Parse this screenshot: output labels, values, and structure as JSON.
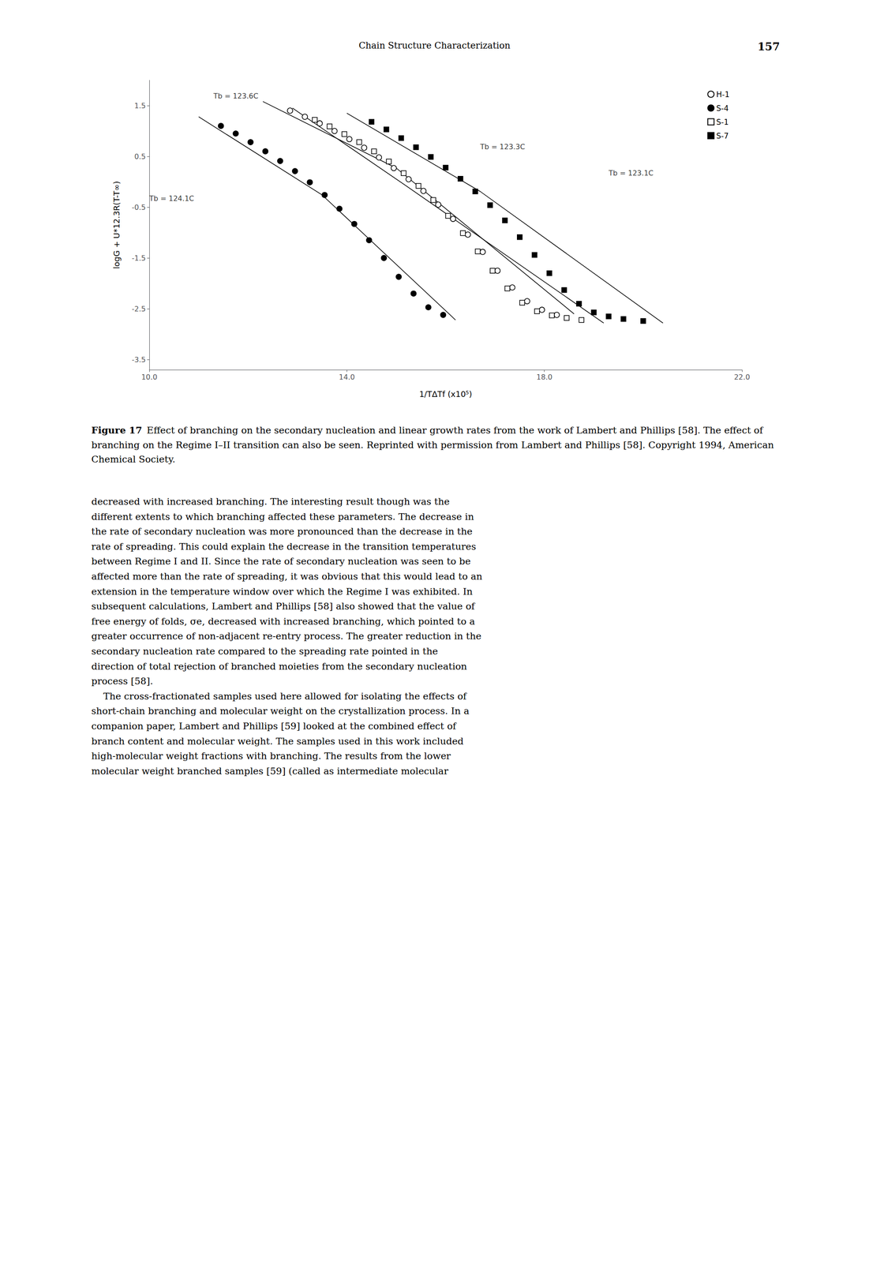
{
  "chart_data": {
    "type": "scatter",
    "x_label": "1/TΔTf (x10⁵)",
    "y_label": "logG + U*12.3R(T-T∞)",
    "xlim": [
      10.0,
      22.0
    ],
    "ylim": [
      -3.7,
      2.0
    ],
    "xticks": [
      {
        "value": 10.0,
        "label": "10.0"
      },
      {
        "value": 14.0,
        "label": "14.0"
      },
      {
        "value": 18.0,
        "label": "18.0"
      },
      {
        "value": 22.0,
        "label": "22.0"
      }
    ],
    "yticks": [
      -3.5,
      -2.5,
      -1.5,
      -0.5,
      0.5,
      1.5
    ],
    "grid": false,
    "legend": "upper right",
    "series": [
      {
        "name": "H-1",
        "marker": "open_circle",
        "color": "black",
        "x": [
          12.85,
          13.15,
          13.45,
          13.75,
          14.05,
          14.35,
          14.65,
          14.95,
          15.25,
          15.55,
          15.85,
          16.15,
          16.45,
          16.75,
          17.05,
          17.35,
          17.65,
          17.95,
          18.25
        ],
        "y": [
          1.4,
          1.28,
          1.15,
          1.0,
          0.84,
          0.67,
          0.48,
          0.27,
          0.05,
          -0.18,
          -0.45,
          -0.73,
          -1.04,
          -1.38,
          -1.75,
          -2.08,
          -2.35,
          -2.52,
          -2.62
        ],
        "line_x": [
          12.3,
          15.0,
          18.6
        ],
        "line_y": [
          1.58,
          0.27,
          -2.6
        ]
      },
      {
        "name": "S-4",
        "marker": "filled_circle",
        "color": "black",
        "x": [
          11.45,
          11.75,
          12.05,
          12.35,
          12.65,
          12.95,
          13.25,
          13.55,
          13.85,
          14.15,
          14.45,
          14.75,
          15.05,
          15.35,
          15.65,
          15.95
        ],
        "y": [
          1.1,
          0.95,
          0.78,
          0.6,
          0.41,
          0.21,
          -0.01,
          -0.26,
          -0.53,
          -0.83,
          -1.15,
          -1.5,
          -1.87,
          -2.2,
          -2.47,
          -2.62
        ],
        "line_x": [
          11.0,
          13.5,
          16.2
        ],
        "line_y": [
          1.28,
          -0.26,
          -2.72
        ]
      },
      {
        "name": "S-1",
        "marker": "open_square",
        "color": "black",
        "x": [
          13.35,
          13.65,
          13.95,
          14.25,
          14.55,
          14.85,
          15.15,
          15.45,
          15.75,
          16.05,
          16.35,
          16.65,
          16.95,
          17.25,
          17.55,
          17.85,
          18.15,
          18.45,
          18.75
        ],
        "y": [
          1.22,
          1.09,
          0.94,
          0.78,
          0.6,
          0.4,
          0.17,
          -0.08,
          -0.36,
          -0.67,
          -1.01,
          -1.37,
          -1.75,
          -2.1,
          -2.38,
          -2.55,
          -2.63,
          -2.68,
          -2.72
        ],
        "line_x": [
          12.9,
          15.2,
          19.2
        ],
        "line_y": [
          1.45,
          -0.08,
          -2.78
        ]
      },
      {
        "name": "S-7",
        "marker": "filled_square",
        "color": "black",
        "x": [
          14.5,
          14.8,
          15.1,
          15.4,
          15.7,
          16.0,
          16.3,
          16.6,
          16.9,
          17.2,
          17.5,
          17.8,
          18.1,
          18.4,
          18.7,
          19.0,
          19.3,
          19.6,
          20.0
        ],
        "y": [
          1.18,
          1.03,
          0.86,
          0.68,
          0.49,
          0.28,
          0.06,
          -0.19,
          -0.46,
          -0.76,
          -1.09,
          -1.44,
          -1.8,
          -2.13,
          -2.4,
          -2.57,
          -2.65,
          -2.7,
          -2.74
        ],
        "line_x": [
          14.0,
          16.7,
          20.4
        ],
        "line_y": [
          1.35,
          -0.19,
          -2.78
        ]
      }
    ],
    "annotations": [
      {
        "text": "Tb = 123.6C",
        "x": 11.3,
        "y": 1.62
      },
      {
        "text": "Tb = 124.1C",
        "x": 10.0,
        "y": -0.4
      },
      {
        "text": "Tb = 123.3C",
        "x": 16.7,
        "y": 0.62
      },
      {
        "text": "Tb = 123.1C",
        "x": 19.3,
        "y": 0.1
      }
    ]
  },
  "header": "Chain Structure Characterization",
  "page_number": "157",
  "caption_label": "Figure 17",
  "caption": "Effect of branching on the secondary nucleation and linear growth rates from the work of Lambert and Phillips [58]. The effect of branching on the Regime I–II transition can also be seen. Reprinted with permission from Lambert and Phillips [58]. Copyright 1994, American Chemical Society.",
  "body_text": [
    "decreased with increased branching. The interesting result though was the",
    "different extents to which branching affected these parameters. The decrease in",
    "the rate of secondary nucleation was more pronounced than the decrease in the",
    "rate of spreading. This could explain the decrease in the transition temperatures",
    "between Regime I and II. Since the rate of secondary nucleation was seen to be",
    "affected more than the rate of spreading, it was obvious that this would lead to an",
    "extension in the temperature window over which the Regime I was exhibited. In",
    "subsequent calculations, Lambert and Phillips [58] also showed that the value of",
    "free energy of folds, σe, decreased with increased branching, which pointed to a",
    "greater occurrence of non-adjacent re-entry process. The greater reduction in the",
    "secondary nucleation rate compared to the spreading rate pointed in the",
    "direction of total rejection of branched moieties from the secondary nucleation",
    "process [58].",
    "    The cross-fractionated samples used here allowed for isolating the effects of",
    "short-chain branching and molecular weight on the crystallization process. In a",
    "companion paper, Lambert and Phillips [59] looked at the combined effect of",
    "branch content and molecular weight. The samples used in this work included",
    "high-molecular weight fractions with branching. The results from the lower",
    "molecular weight branched samples [59] (called as intermediate molecular"
  ]
}
